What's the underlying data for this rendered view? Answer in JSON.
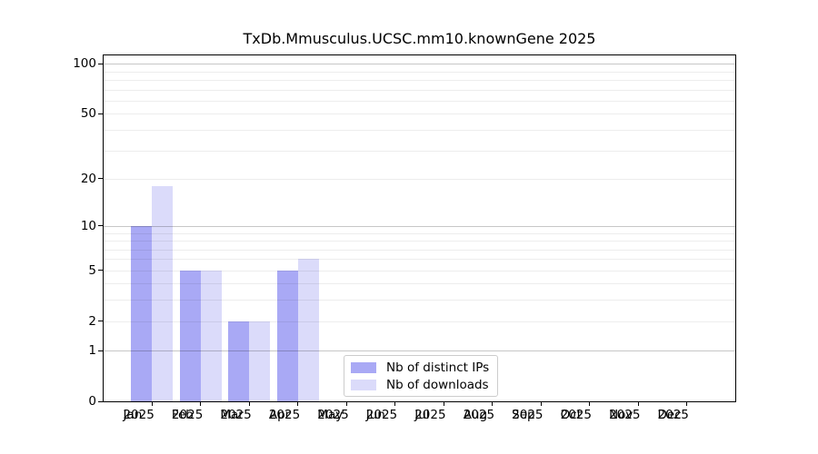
{
  "title": "TxDb.Mmusculus.UCSC.mm10.knownGene 2025",
  "chart_data": {
    "type": "bar",
    "title": "TxDb.Mmusculus.UCSC.mm10.knownGene 2025",
    "categories": [
      "Jan 2025",
      "Feb 2025",
      "Mar 2025",
      "Apr 2025",
      "May 2025",
      "Jun 2025",
      "Jul 2025",
      "Aug 2025",
      "Sep 2025",
      "Oct 2025",
      "Nov 2025",
      "Dec 2025"
    ],
    "x_tick_months": [
      "Jan",
      "Feb",
      "Mar",
      "Apr",
      "May",
      "Jun",
      "Jul",
      "Aug",
      "Sep",
      "Oct",
      "Nov",
      "Dec"
    ],
    "x_tick_year": "2025",
    "series": [
      {
        "name": "Nb of distinct IPs",
        "color": "#a9a9f5",
        "values": [
          10,
          5,
          2,
          5,
          0,
          0,
          0,
          0,
          0,
          0,
          0,
          0
        ]
      },
      {
        "name": "Nb of downloads",
        "color": "#dbdbfa",
        "values": [
          18,
          5,
          2,
          6,
          0,
          0,
          0,
          0,
          0,
          0,
          0,
          0
        ]
      }
    ],
    "xlabel": "",
    "ylabel": "",
    "y_scale": "log1p",
    "ylim": [
      0,
      113
    ],
    "y_tick_values": [
      0,
      1,
      2,
      5,
      10,
      20,
      50,
      100
    ],
    "y_major_gridlines": [
      1,
      10,
      100
    ],
    "y_minor_gridlines": [
      2,
      3,
      4,
      5,
      6,
      7,
      8,
      9,
      20,
      30,
      40,
      50,
      60,
      70,
      80,
      90
    ],
    "grid": true,
    "legend_position": "inside-bottom-center"
  }
}
